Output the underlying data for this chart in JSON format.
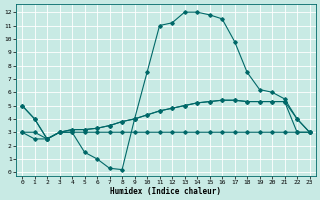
{
  "title": "",
  "xlabel": "Humidex (Indice chaleur)",
  "ylabel": "",
  "bg_color": "#c8eae4",
  "grid_color": "#ffffff",
  "line_color": "#006868",
  "xlim": [
    -0.5,
    23.5
  ],
  "ylim": [
    -0.3,
    12.6
  ],
  "xticks": [
    0,
    1,
    2,
    3,
    4,
    5,
    6,
    7,
    8,
    9,
    10,
    11,
    12,
    13,
    14,
    15,
    16,
    17,
    18,
    19,
    20,
    21,
    22,
    23
  ],
  "yticks": [
    0,
    1,
    2,
    3,
    4,
    5,
    6,
    7,
    8,
    9,
    10,
    11,
    12
  ],
  "curve1": [
    5.0,
    4.0,
    2.5,
    3.0,
    3.0,
    1.5,
    1.0,
    0.3,
    0.2,
    4.0,
    7.5,
    11.0,
    11.2,
    12.0,
    12.0,
    11.8,
    11.5,
    9.8,
    7.5,
    6.2,
    6.0,
    5.5,
    4.0,
    3.0
  ],
  "curve2": [
    3.0,
    3.0,
    2.5,
    3.0,
    3.0,
    3.0,
    3.0,
    3.0,
    3.0,
    3.0,
    3.0,
    3.0,
    3.0,
    3.0,
    3.0,
    3.0,
    3.0,
    3.0,
    3.0,
    3.0,
    3.0,
    3.0,
    3.0,
    3.0
  ],
  "curve3": [
    3.0,
    2.5,
    2.5,
    3.0,
    3.2,
    3.2,
    3.3,
    3.5,
    3.8,
    4.0,
    4.3,
    4.6,
    4.8,
    5.0,
    5.2,
    5.3,
    5.4,
    5.4,
    5.3,
    5.3,
    5.3,
    5.3,
    3.0,
    3.0
  ],
  "curve4": [
    5.0,
    4.0,
    2.5,
    3.0,
    3.2,
    3.2,
    3.3,
    3.5,
    3.8,
    4.0,
    4.3,
    4.6,
    4.8,
    5.0,
    5.2,
    5.3,
    5.4,
    5.4,
    5.3,
    5.3,
    5.3,
    5.3,
    4.0,
    3.0
  ]
}
